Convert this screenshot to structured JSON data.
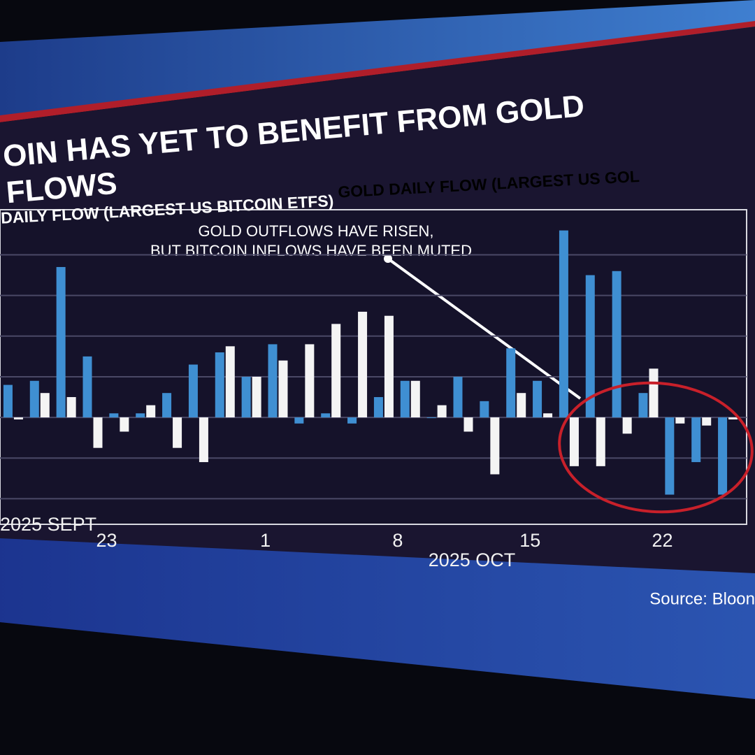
{
  "chart_data": {
    "type": "bar",
    "title_lines": [
      "OIN HAS YET TO BENEFIT FROM GOLD",
      "FLOWS"
    ],
    "annotation_lines": [
      "GOLD OUTFLOWS HAVE RISEN,",
      "BUT BITCOIN INFLOWS HAVE BEEN MUTED"
    ],
    "source": "Source: Bloon",
    "x_group_labels": [
      "2025 SEPT",
      "2025 OCT"
    ],
    "categories": [
      null,
      null,
      null,
      "23",
      null,
      null,
      null,
      null,
      null,
      "1",
      null,
      null,
      null,
      null,
      "8",
      null,
      null,
      null,
      null,
      "15",
      null,
      null,
      null,
      null,
      "22",
      null,
      null,
      null
    ],
    "series": [
      {
        "name": "GOLD DAILY FLOW (LARGEST US GOL",
        "color": "#3f8fd2",
        "values": [
          0.8,
          0.9,
          3.7,
          1.5,
          0.1,
          0.1,
          0.6,
          1.3,
          1.6,
          1.0,
          1.8,
          -0.15,
          0.1,
          -0.15,
          0.5,
          0.9,
          0.0,
          1.0,
          0.4,
          1.7,
          0.9,
          4.6,
          3.5,
          3.6,
          0.6,
          -1.9,
          -1.1,
          -1.9
        ]
      },
      {
        "name": "DAILY FLOW (LARGEST US BITCOIN ETFS)",
        "color": "#f4f4f4",
        "values": [
          -0.05,
          0.6,
          0.5,
          -0.75,
          -0.35,
          0.3,
          -0.75,
          -1.1,
          1.75,
          1.0,
          1.4,
          1.8,
          2.3,
          2.6,
          2.5,
          0.9,
          0.3,
          -0.35,
          -1.4,
          0.6,
          0.1,
          -1.2,
          -1.2,
          -0.4,
          1.2,
          -0.15,
          -0.2,
          -0.05
        ]
      }
    ],
    "ylim": [
      -2.2,
      4.8
    ],
    "yticks": [
      -2,
      -1,
      0,
      1,
      2,
      3,
      4
    ],
    "grid": true
  }
}
